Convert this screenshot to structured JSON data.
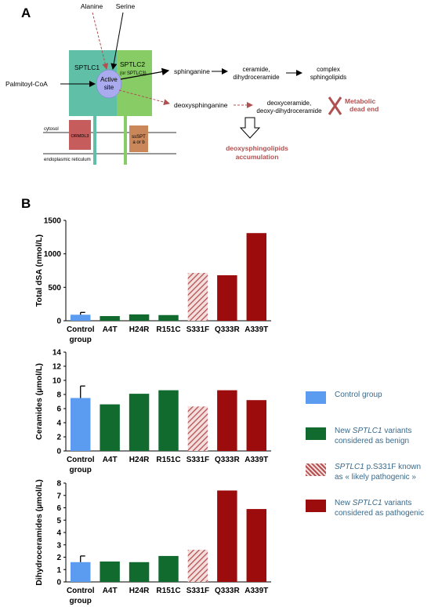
{
  "panel_a": {
    "letter": "A",
    "alanine": "Alanine",
    "serine": "Serine",
    "palmitoyl": "Palmitoyl-CoA",
    "sptlc1": "SPTLC1",
    "sptlc2_line1": "SPTLC2",
    "sptlc2_line2": "(or  SPTLC3)",
    "active_line1": "Active",
    "active_line2": "site",
    "sphinganine": "sphinganine",
    "ceramide_line1": "ceramide,",
    "ceramide_line2": "dihydroceramide",
    "complex_line1": "complex",
    "complex_line2": "sphingolipids",
    "deoxysphinganine": "deoxysphinganine",
    "deoxyceramide_line1": "deoxyceramide,",
    "deoxyceramide_line2": "deoxy-dihydroceramide",
    "dead_end_line1": "Metabolic",
    "dead_end_line2": "dead end",
    "cytosol": "cytosol",
    "er": "endoplasmic reticulum",
    "ormdl": "ORMDL3",
    "sspt_line1": "ssSPT",
    "sspt_line2": "a or b",
    "accum_line1": "deoxysphingolipids",
    "accum_line2": "accumulation"
  },
  "panel_b": {
    "letter": "B"
  },
  "colors": {
    "control": "#5b9bf0",
    "benign": "#116b2e",
    "likely": "#b55050",
    "pathogenic": "#9c0c0c",
    "sptlc1_box": "#5fbfa7",
    "sptlc2_box": "#88cc66",
    "active_site": "#a9abee",
    "ormdl_box": "#c75c5c",
    "sspt_box": "#c9875a",
    "dead_end": "#b05050"
  },
  "legend": {
    "items": [
      {
        "key": "control",
        "text": "Control group"
      },
      {
        "key": "benign",
        "pre": "New ",
        "ital": "SPTLC1",
        "post": " variants considered as benign"
      },
      {
        "key": "likely",
        "pre": "",
        "ital": "SPTLC1",
        "post": " p.S331F known as « likely pathogenic »"
      },
      {
        "key": "pathogenic",
        "pre": "New ",
        "ital": "SPTLC1",
        "post": " variants considered as pathogenic"
      }
    ]
  },
  "chart_data": [
    {
      "type": "bar",
      "categories": [
        "Control group",
        "A4T",
        "H24R",
        "R151C",
        "S331F",
        "Q333R",
        "A339T"
      ],
      "values": [
        90,
        70,
        95,
        85,
        715,
        680,
        1310
      ],
      "errors": [
        35,
        0,
        0,
        0,
        0,
        0,
        0
      ],
      "groups": [
        "control",
        "benign",
        "benign",
        "benign",
        "likely",
        "pathogenic",
        "pathogenic"
      ],
      "ylabel": "Total dSA (nmol/L)",
      "ylim": [
        0,
        1500
      ],
      "yticks": [
        0,
        500,
        1000,
        1500
      ]
    },
    {
      "type": "bar",
      "categories": [
        "Control group",
        "A4T",
        "H24R",
        "R151C",
        "S331F",
        "Q333R",
        "A339T"
      ],
      "values": [
        7.5,
        6.6,
        8.1,
        8.6,
        6.3,
        8.6,
        7.2
      ],
      "errors": [
        1.7,
        0,
        0,
        0,
        0,
        0,
        0
      ],
      "groups": [
        "control",
        "benign",
        "benign",
        "benign",
        "likely",
        "pathogenic",
        "pathogenic"
      ],
      "ylabel": "Ceramides (µmol/L)",
      "ylim": [
        0,
        14
      ],
      "yticks": [
        0,
        2,
        4,
        6,
        8,
        10,
        12,
        14
      ]
    },
    {
      "type": "bar",
      "categories": [
        "Control group",
        "A4T",
        "H24R",
        "R151C",
        "S331F",
        "Q333R",
        "A339T"
      ],
      "values": [
        1.6,
        1.65,
        1.6,
        2.1,
        2.6,
        7.4,
        5.9
      ],
      "errors": [
        0.5,
        0,
        0,
        0,
        0,
        0,
        0
      ],
      "groups": [
        "control",
        "benign",
        "benign",
        "benign",
        "likely",
        "pathogenic",
        "pathogenic"
      ],
      "ylabel": "Dihydroceramides (µmol/L)",
      "ylim": [
        0,
        8
      ],
      "yticks": [
        0,
        1,
        2,
        3,
        4,
        5,
        6,
        7,
        8
      ]
    }
  ]
}
